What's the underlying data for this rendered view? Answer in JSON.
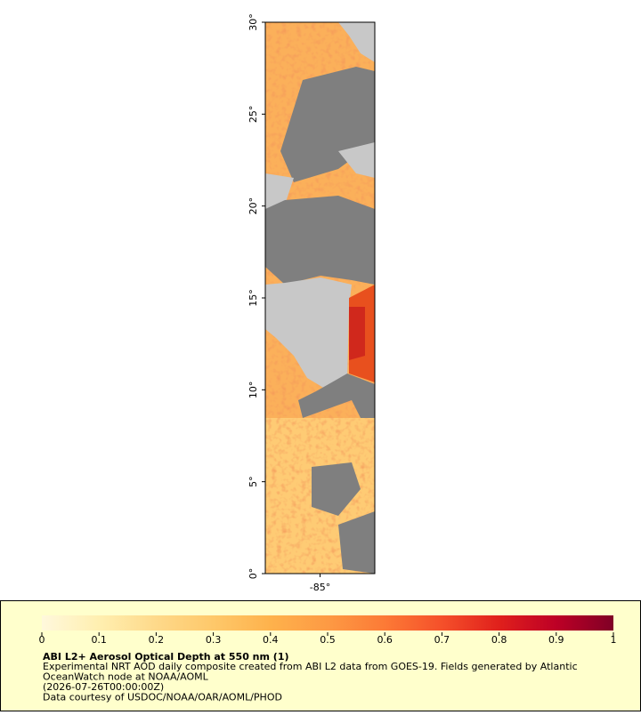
{
  "map": {
    "lat_range": [
      0,
      30
    ],
    "lon_range": [
      -88,
      -82
    ],
    "lat_ticks": [
      {
        "value": 0,
        "label": "0°"
      },
      {
        "value": 5,
        "label": "5°"
      },
      {
        "value": 10,
        "label": "10°"
      },
      {
        "value": 15,
        "label": "15°"
      },
      {
        "value": 20,
        "label": "20°"
      },
      {
        "value": 25,
        "label": "25°"
      },
      {
        "value": 30,
        "label": "30°"
      }
    ],
    "lon_ticks": [
      {
        "value": -85,
        "label": "-85°"
      }
    ]
  },
  "colorbar": {
    "range": [
      0,
      1
    ],
    "ticks": [
      0,
      0.1,
      0.2,
      0.3,
      0.4,
      0.5,
      0.6,
      0.7,
      0.8,
      0.9,
      1
    ],
    "colors": [
      "#fff8dc",
      "#ffefb0",
      "#fed98a",
      "#fec86a",
      "#feb24c",
      "#fd9a44",
      "#fc7a36",
      "#f5502a",
      "#e0201c",
      "#bd0026",
      "#800026"
    ]
  },
  "legend": {
    "title": "ABI L2+ Aerosol Optical Depth at 550 nm (1)",
    "lines": [
      "Experimental NRT AOD daily composite created from ABI L2 data from GOES-19. Fields generated by Atlantic",
      "OceanWatch node at NOAA/AOML",
      "(2026-07-26T00:00:00Z)",
      "Data courtesy of USDOC/NOAA/OAR/AOML/PHOD"
    ]
  }
}
